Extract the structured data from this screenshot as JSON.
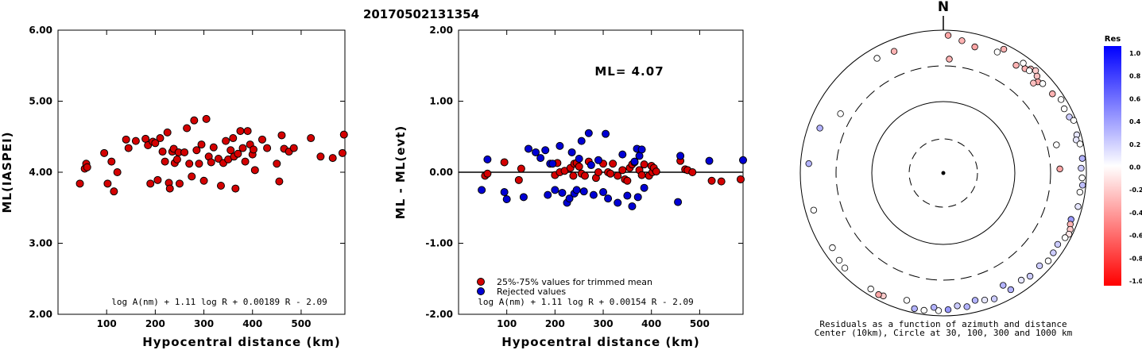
{
  "title": "20170502131354",
  "chart_data": [
    {
      "type": "scatter",
      "ylabel": "ML(IASPEI)",
      "xlabel": "Hypocentral distance (km)",
      "xlim": [
        0,
        590
      ],
      "ylim": [
        2.0,
        6.0
      ],
      "xticks": [
        100,
        200,
        300,
        400,
        500
      ],
      "yticks": [
        2.0,
        3.0,
        4.0,
        5.0,
        6.0
      ],
      "ytick_labels": [
        "2.00",
        "3.00",
        "4.00",
        "5.00",
        "6.00"
      ],
      "formula": "log A(nm) + 1.11 log R + 0.00189 R - 2.09",
      "series": [
        {
          "color": "#d40000",
          "x": [
            45,
            55,
            58,
            60,
            95,
            102,
            110,
            115,
            122,
            140,
            145,
            160,
            180,
            185,
            190,
            195,
            200,
            205,
            210,
            215,
            220,
            225,
            228,
            230,
            235,
            238,
            240,
            245,
            248,
            250,
            260,
            265,
            270,
            275,
            280,
            285,
            290,
            295,
            300,
            305,
            310,
            315,
            320,
            330,
            335,
            340,
            345,
            350,
            355,
            360,
            362,
            365,
            370,
            375,
            380,
            385,
            390,
            395,
            400,
            402,
            405,
            420,
            430,
            450,
            455,
            460,
            465,
            475,
            485,
            520,
            540,
            565,
            585,
            588
          ],
          "y": [
            3.84,
            4.05,
            4.12,
            4.07,
            4.27,
            3.84,
            4.15,
            3.73,
            4.0,
            4.46,
            4.34,
            4.44,
            4.47,
            4.38,
            3.84,
            4.43,
            4.41,
            3.89,
            4.48,
            4.29,
            4.15,
            4.56,
            3.85,
            3.77,
            4.29,
            4.33,
            4.13,
            4.18,
            4.28,
            3.84,
            4.28,
            4.62,
            4.12,
            3.94,
            4.73,
            4.31,
            4.12,
            4.39,
            3.88,
            4.75,
            4.22,
            4.14,
            4.35,
            4.19,
            3.81,
            4.13,
            4.44,
            4.18,
            4.31,
            4.48,
            4.22,
            3.77,
            4.26,
            4.58,
            4.34,
            4.15,
            4.58,
            4.39,
            4.25,
            4.32,
            4.03,
            4.46,
            4.34,
            4.12,
            3.87,
            4.52,
            4.33,
            4.29,
            4.34,
            4.48,
            4.22,
            4.2,
            4.27,
            4.53
          ]
        }
      ]
    },
    {
      "type": "scatter",
      "ylabel": "ML - ML(evt)",
      "xlabel": "Hypocentral distance (km)",
      "xlim": [
        0,
        590
      ],
      "ylim": [
        -2.0,
        2.0
      ],
      "xticks": [
        100,
        200,
        300,
        400,
        500
      ],
      "yticks": [
        -2.0,
        -1.0,
        0.0,
        1.0,
        2.0
      ],
      "ytick_labels": [
        "-2.00",
        "-1.00",
        "0.00",
        "1.00",
        "2.00"
      ],
      "annotation": "ML= 4.07",
      "formula": "log A(nm) + 1.11 log R + 0.00154 R - 2.09",
      "legend": [
        "25%-75% values for trimmed mean",
        "Rejected values"
      ],
      "series": [
        {
          "name": "25%-75% values for trimmed mean",
          "color": "#d40000",
          "x": [
            55,
            60,
            95,
            125,
            130,
            200,
            205,
            210,
            220,
            232,
            238,
            240,
            245,
            250,
            255,
            262,
            270,
            285,
            290,
            300,
            310,
            315,
            320,
            330,
            340,
            345,
            350,
            355,
            360,
            365,
            375,
            380,
            385,
            395,
            400,
            402,
            405,
            410,
            460,
            470,
            475,
            485,
            525,
            545,
            585
          ],
          "y": [
            -0.05,
            -0.02,
            0.14,
            -0.11,
            0.05,
            -0.04,
            0.13,
            0.0,
            0.02,
            0.06,
            -0.05,
            0.12,
            0.13,
            0.08,
            -0.02,
            -0.05,
            0.15,
            -0.08,
            0.0,
            0.12,
            0.0,
            -0.02,
            0.12,
            -0.05,
            0.03,
            -0.1,
            -0.12,
            0.06,
            0.11,
            0.14,
            0.03,
            -0.04,
            0.11,
            -0.05,
            0.09,
            0.0,
            0.06,
            0.01,
            0.16,
            0.04,
            0.03,
            0.0,
            -0.12,
            -0.13,
            -0.1
          ]
        },
        {
          "name": "Rejected values",
          "color": "#0000d4",
          "x": [
            48,
            60,
            95,
            100,
            135,
            145,
            160,
            170,
            180,
            185,
            190,
            195,
            200,
            210,
            215,
            225,
            230,
            235,
            240,
            245,
            250,
            255,
            260,
            270,
            275,
            280,
            290,
            300,
            305,
            310,
            330,
            340,
            350,
            360,
            365,
            370,
            372,
            375,
            380,
            385,
            455,
            460,
            520,
            590
          ],
          "y": [
            -0.25,
            0.18,
            -0.28,
            -0.38,
            -0.35,
            0.33,
            0.28,
            0.2,
            0.31,
            -0.32,
            0.12,
            0.12,
            -0.25,
            0.37,
            -0.29,
            -0.43,
            -0.37,
            0.28,
            -0.3,
            -0.25,
            0.19,
            0.44,
            -0.27,
            0.55,
            0.1,
            -0.32,
            0.17,
            -0.28,
            0.54,
            -0.37,
            -0.43,
            0.25,
            -0.33,
            -0.48,
            0.15,
            0.33,
            -0.35,
            0.23,
            0.32,
            -0.22,
            -0.42,
            0.23,
            0.16,
            0.17
          ]
        }
      ]
    }
  ],
  "polar": {
    "north_label": "N",
    "caption_line1": "Residuals as a function of azimuth and distance",
    "caption_line2": "Center (10km), Circle at 30, 100, 300 and 1000 km",
    "points": [
      {
        "az": 2,
        "dist": 2600,
        "res": -0.35
      },
      {
        "az": 8,
        "dist": 2200,
        "res": -0.3
      },
      {
        "az": 14,
        "dist": 1900,
        "res": -0.35
      },
      {
        "az": 24,
        "dist": 2100,
        "res": 0.0
      },
      {
        "az": 26,
        "dist": 2600,
        "res": -0.3
      },
      {
        "az": -22,
        "dist": 2000,
        "res": -0.3
      },
      {
        "az": 3,
        "dist": 1000,
        "res": -0.3
      },
      {
        "az": 34,
        "dist": 1900,
        "res": -0.3
      },
      {
        "az": 38,
        "dist": 2100,
        "res": -0.3
      },
      {
        "az": 36,
        "dist": 2400,
        "res": 0.0
      },
      {
        "az": 40,
        "dist": 2400,
        "res": -0.25
      },
      {
        "az": 42,
        "dist": 2600,
        "res": -0.2
      },
      {
        "az": 40,
        "dist": 2200,
        "res": 0.0
      },
      {
        "az": 44,
        "dist": 2300,
        "res": -0.25
      },
      {
        "az": 46,
        "dist": 2000,
        "res": -0.35
      },
      {
        "az": 48,
        "dist": 2200,
        "res": 0.0
      },
      {
        "az": 45,
        "dist": 1700,
        "res": -0.25
      },
      {
        "az": 54,
        "dist": 2300,
        "res": -0.3
      },
      {
        "az": 58,
        "dist": 2700,
        "res": 0.0
      },
      {
        "az": 62,
        "dist": 2500,
        "res": 0.0
      },
      {
        "az": 66,
        "dist": 2600,
        "res": 0.2
      },
      {
        "az": 68,
        "dist": 2900,
        "res": 0.0
      },
      {
        "az": 74,
        "dist": 2700,
        "res": 0.1
      },
      {
        "az": 76,
        "dist": 2500,
        "res": 0.1
      },
      {
        "az": 78,
        "dist": 2800,
        "res": 0.0
      },
      {
        "az": 84,
        "dist": 2800,
        "res": 0.3
      },
      {
        "az": 88,
        "dist": 2600,
        "res": 0.2
      },
      {
        "az": 92,
        "dist": 2700,
        "res": 0.0
      },
      {
        "az": 95,
        "dist": 2800,
        "res": 0.25
      },
      {
        "az": 98,
        "dist": 2600,
        "res": 0.0
      },
      {
        "az": 76,
        "dist": 1100,
        "res": 0.0
      },
      {
        "az": 88,
        "dist": 1100,
        "res": -0.35
      },
      {
        "az": 104,
        "dist": 2700,
        "res": 0.1
      },
      {
        "az": 110,
        "dist": 2400,
        "res": 0.4
      },
      {
        "az": 112,
        "dist": 2500,
        "res": -0.3
      },
      {
        "az": 114,
        "dist": 2700,
        "res": -0.2
      },
      {
        "az": 116,
        "dist": 2800,
        "res": -0.1
      },
      {
        "az": 118,
        "dist": 2600,
        "res": 0.0
      },
      {
        "az": 122,
        "dist": 2300,
        "res": 0.2
      },
      {
        "az": 126,
        "dist": 2400,
        "res": 0.2
      },
      {
        "az": 130,
        "dist": 2500,
        "res": 0.0
      },
      {
        "az": 134,
        "dist": 2200,
        "res": 0.2
      },
      {
        "az": 140,
        "dist": 2300,
        "res": 0.2
      },
      {
        "az": 144,
        "dist": 2100,
        "res": 0.1
      },
      {
        "az": 150,
        "dist": 2300,
        "res": 0.3
      },
      {
        "az": 152,
        "dist": 1700,
        "res": 0.3
      },
      {
        "az": 158,
        "dist": 2400,
        "res": 0.2
      },
      {
        "az": 162,
        "dist": 2200,
        "res": 0.1
      },
      {
        "az": 166,
        "dist": 2000,
        "res": 0.3
      },
      {
        "az": 170,
        "dist": 2400,
        "res": 0.3
      },
      {
        "az": 174,
        "dist": 2200,
        "res": 0.2
      },
      {
        "az": 178,
        "dist": 2500,
        "res": 0.4
      },
      {
        "az": 182,
        "dist": 2600,
        "res": 0.0
      },
      {
        "az": 184,
        "dist": 2300,
        "res": 0.3
      },
      {
        "az": 188,
        "dist": 2700,
        "res": 0.0
      },
      {
        "az": 192,
        "dist": 2700,
        "res": 0.3
      },
      {
        "az": 196,
        "dist": 2100,
        "res": 0.0
      },
      {
        "az": 206,
        "dist": 2500,
        "res": -0.2
      },
      {
        "az": 208,
        "dist": 2600,
        "res": -0.35
      },
      {
        "az": 212,
        "dist": 2500,
        "res": 0.0
      },
      {
        "az": 226,
        "dist": 2500,
        "res": 0.0
      },
      {
        "az": 230,
        "dist": 2400,
        "res": 0.0
      },
      {
        "az": 236,
        "dist": 2200,
        "res": 0.0
      },
      {
        "az": 254,
        "dist": 2300,
        "res": 0.0
      },
      {
        "az": 274,
        "dist": 2300,
        "res": 0.3
      },
      {
        "az": 290,
        "dist": 2000,
        "res": 0.3
      },
      {
        "az": 300,
        "dist": 1200,
        "res": 0.0
      },
      {
        "az": 330,
        "dist": 2100,
        "res": 0.0
      }
    ]
  },
  "colorbar": {
    "title": "Res",
    "labels": [
      "1.0",
      "0.8",
      "0.6",
      "0.4",
      "0.2",
      "0.0",
      "-0.2",
      "-0.4",
      "-0.6",
      "-0.8",
      "-1.0"
    ],
    "top_color": "#0000ff",
    "bottom_color": "#ff0000"
  }
}
